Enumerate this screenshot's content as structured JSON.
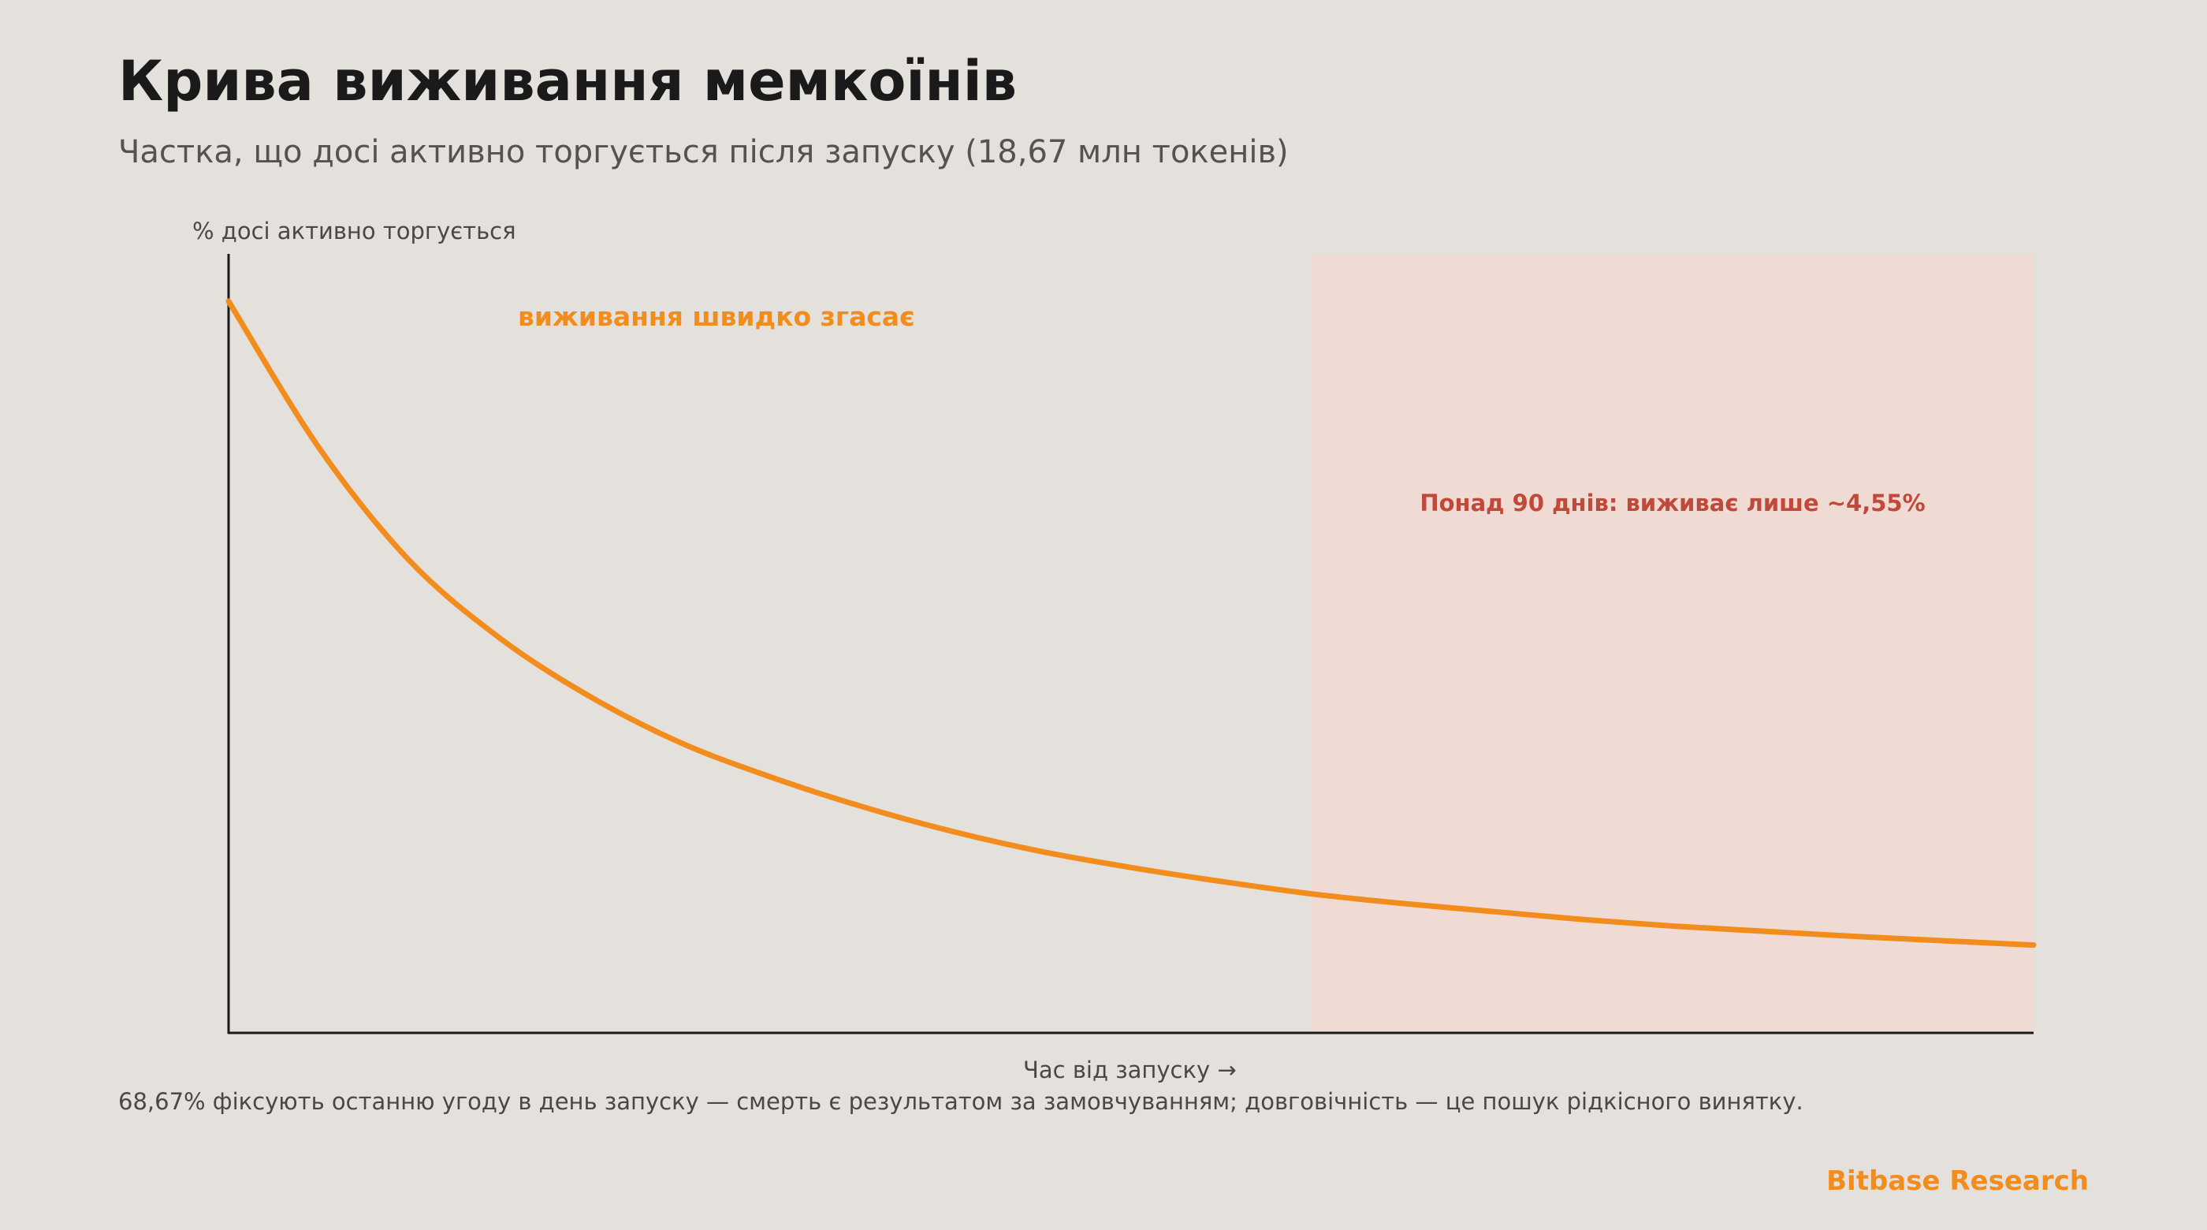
{
  "title": "Крива виживання мемкоїнів",
  "subtitle": "Частка, що досі активно торгується після запуску (18,67 млн токенів)",
  "footnote": "68,67% фіксують останню угоду в день запуску — смерть є результатом за замовчуванням; довговічність — це пошук рідкісного винятку.",
  "brand": "Bitbase Research",
  "colors": {
    "background": "#e4e0db",
    "curve": "#f28c1c",
    "shaded_region": "#efdbd4",
    "shaded_annotation": "#c0493a",
    "axis": "#1a1a1a"
  },
  "chart_data": {
    "type": "line",
    "title": "Крива виживання мемкоїнів",
    "subtitle": "Частка, що досі активно торгується після запуску (18,67 млн токенів)",
    "xlabel": "Час від запуску →",
    "ylabel": "% досі активно торгується",
    "x_tick_labels": false,
    "y_tick_labels": false,
    "grid": false,
    "series": [
      {
        "x": [
          0,
          0.05,
          0.1,
          0.15,
          0.2,
          0.25,
          0.3,
          0.35,
          0.4,
          0.45,
          0.5,
          0.55,
          0.6,
          0.65,
          0.7,
          0.75,
          0.8,
          0.85,
          0.9,
          0.95,
          1.0
        ],
        "y": [
          1.0,
          0.8,
          0.646,
          0.54,
          0.46,
          0.397,
          0.35,
          0.31,
          0.276,
          0.248,
          0.226,
          0.207,
          0.19,
          0.177,
          0.166,
          0.155,
          0.146,
          0.139,
          0.132,
          0.126,
          0.12
        ]
      }
    ],
    "shaded_region": {
      "x_start": 0.6,
      "x_end": 1.0,
      "label": "Понад 90 днів: виживає лише ~4,55%"
    },
    "annotations": [
      {
        "text": "виживання швидко згасає"
      }
    ]
  }
}
